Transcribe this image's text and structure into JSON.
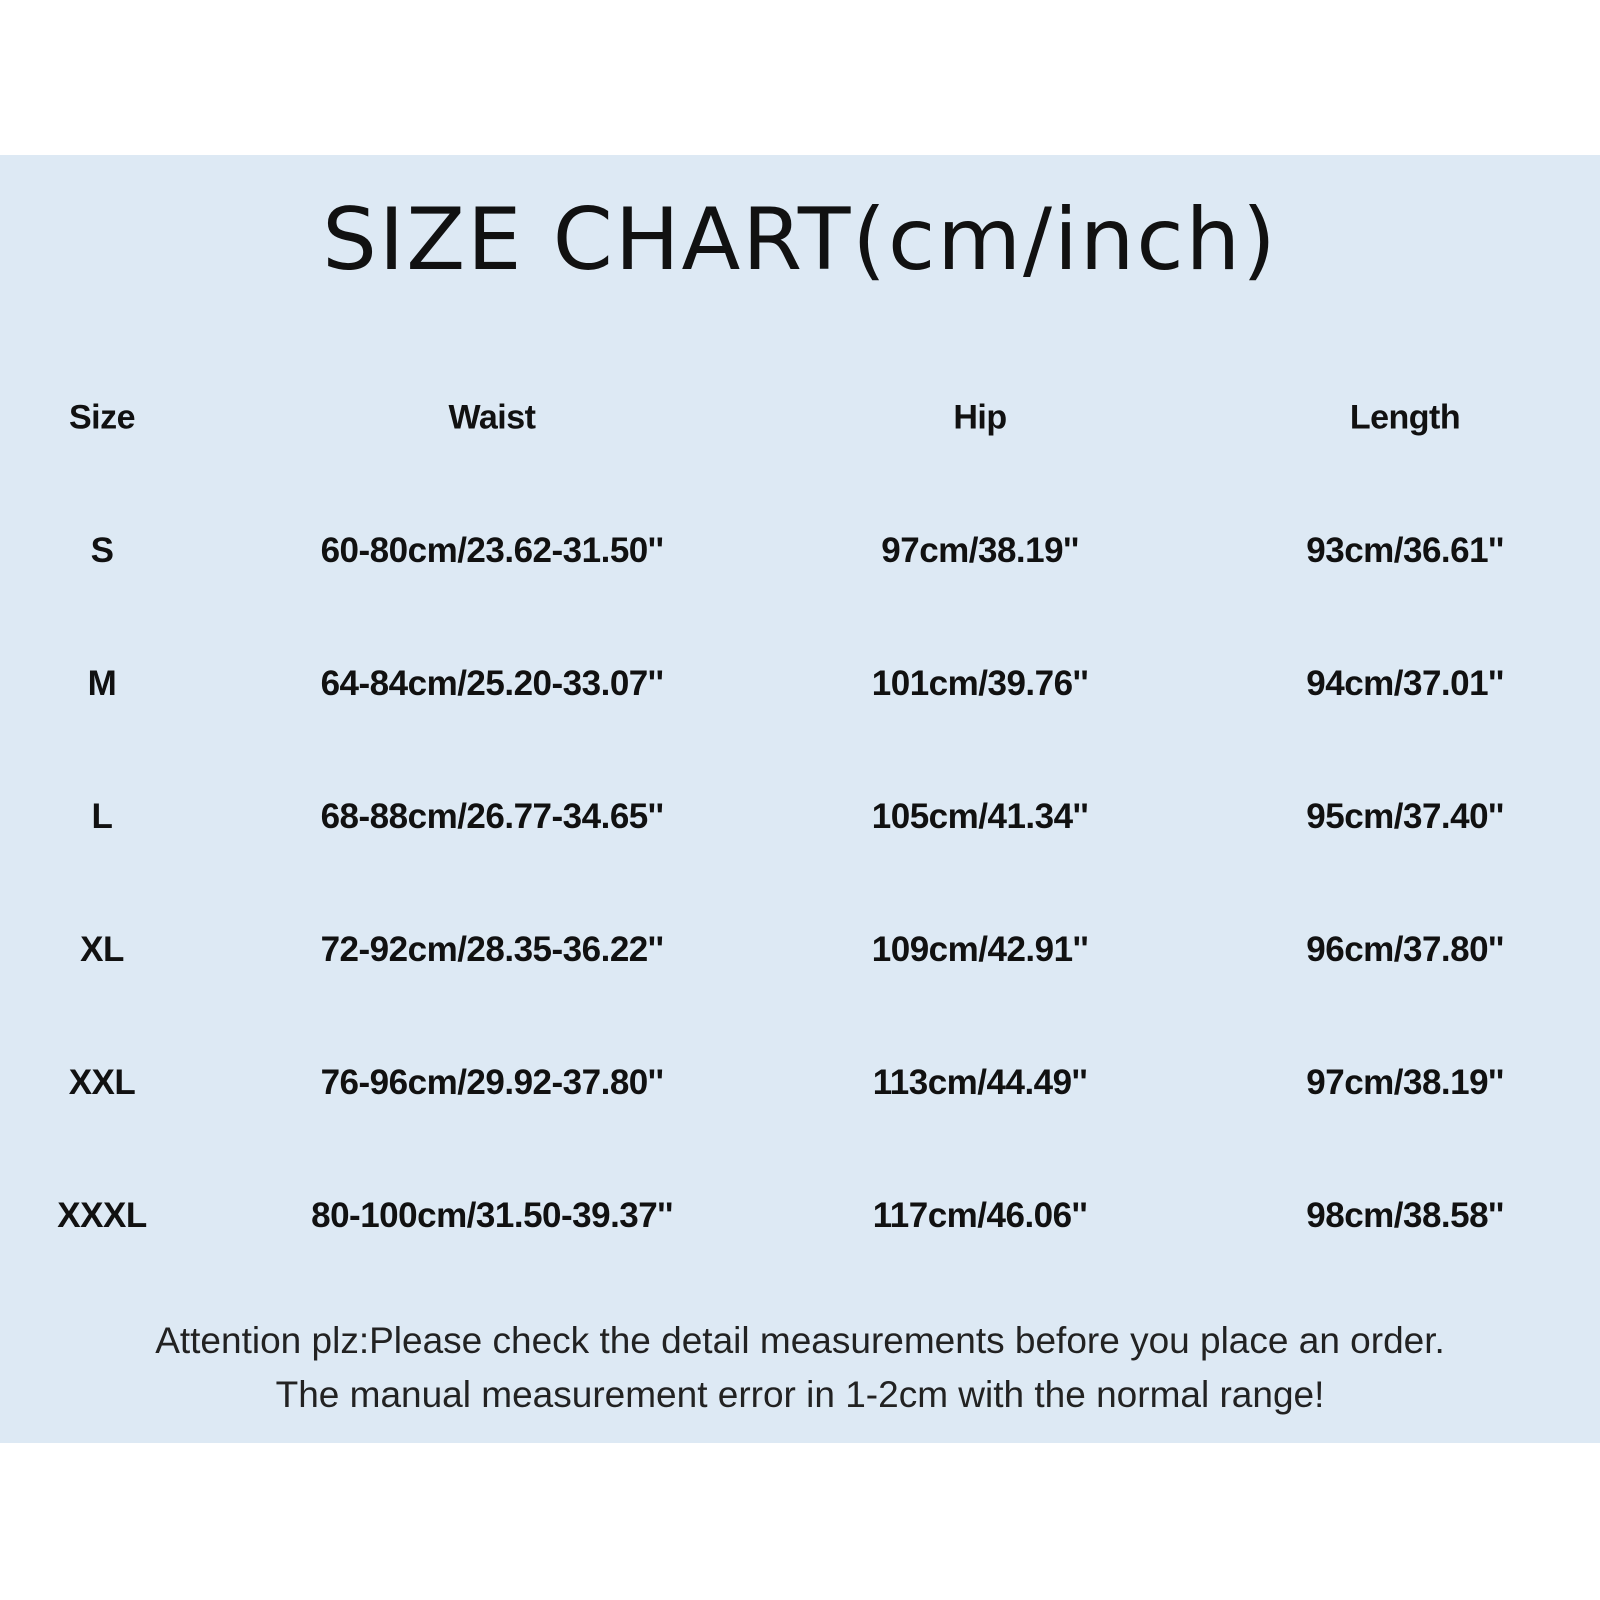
{
  "title": "SIZE CHART(cm/inch)",
  "table": {
    "headers": [
      "Size",
      "Waist",
      "Hip",
      "Length"
    ],
    "rows": [
      [
        "S",
        "60-80cm/23.62-31.50''",
        "97cm/38.19''",
        "93cm/36.61''"
      ],
      [
        "M",
        "64-84cm/25.20-33.07''",
        "101cm/39.76''",
        "94cm/37.01''"
      ],
      [
        "L",
        "68-88cm/26.77-34.65''",
        "105cm/41.34''",
        "95cm/37.40''"
      ],
      [
        "XL",
        "72-92cm/28.35-36.22''",
        "109cm/42.91''",
        "96cm/37.80''"
      ],
      [
        "XXL",
        "76-96cm/29.92-37.80''",
        "113cm/44.49''",
        "97cm/38.19''"
      ],
      [
        "XXXL",
        "80-100cm/31.50-39.37''",
        "117cm/46.06''",
        "98cm/38.58''"
      ]
    ]
  },
  "note": {
    "line1": "Attention plz:Please check the detail measurements before you place an order.",
    "line2": "The manual measurement error in 1-2cm with the normal range!"
  },
  "colors": {
    "background": "#dde9f4",
    "text": "#111111"
  }
}
